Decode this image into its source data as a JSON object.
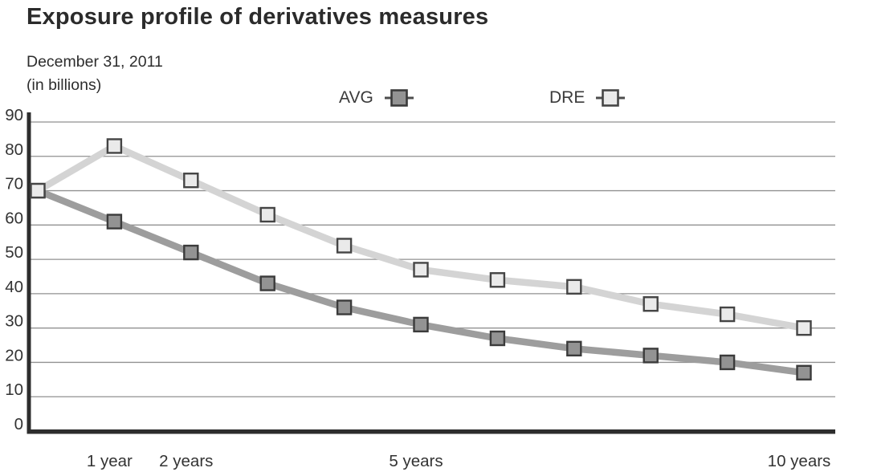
{
  "title": "Exposure profile of derivatives measures",
  "subtitle": {
    "date": "December 31, 2011",
    "units": "(in billions)"
  },
  "chart_data": {
    "type": "line",
    "title": "Exposure profile of derivatives measures",
    "as_of": "December 31, 2011",
    "units": "in billions",
    "x_unit": "years",
    "x": [
      0,
      1,
      2,
      3,
      4,
      5,
      6,
      7,
      8,
      9,
      10
    ],
    "x_tick_labels": [
      {
        "x": 1,
        "label": "1 year"
      },
      {
        "x": 2,
        "label": "2 years"
      },
      {
        "x": 5,
        "label": "5 years"
      },
      {
        "x": 10,
        "label": "10 years"
      }
    ],
    "y_ticks": [
      0,
      10,
      20,
      30,
      40,
      50,
      60,
      70,
      80,
      90
    ],
    "ylim": [
      0,
      90
    ],
    "grid": true,
    "legend_position": "top-center",
    "series": [
      {
        "name": "AVG",
        "values": [
          70,
          61,
          52,
          43,
          36,
          31,
          27,
          24,
          22,
          20,
          17
        ],
        "line_color": "#9d9d9d",
        "marker_fill": "#939393",
        "marker_border": "#3b3b3b"
      },
      {
        "name": "DRE",
        "values": [
          70,
          83,
          73,
          63,
          54,
          47,
          44,
          42,
          37,
          34,
          30
        ],
        "line_color": "#d4d4d4",
        "marker_fill": "#eaeaea",
        "marker_border": "#454545"
      }
    ]
  },
  "colors": {
    "background": "#ffffff",
    "title_text": "#2b2b2b",
    "axis": "#2d2d2d",
    "gridline": "#919191",
    "tick_label": "#333333",
    "legend_line": "#4d4d4d"
  }
}
